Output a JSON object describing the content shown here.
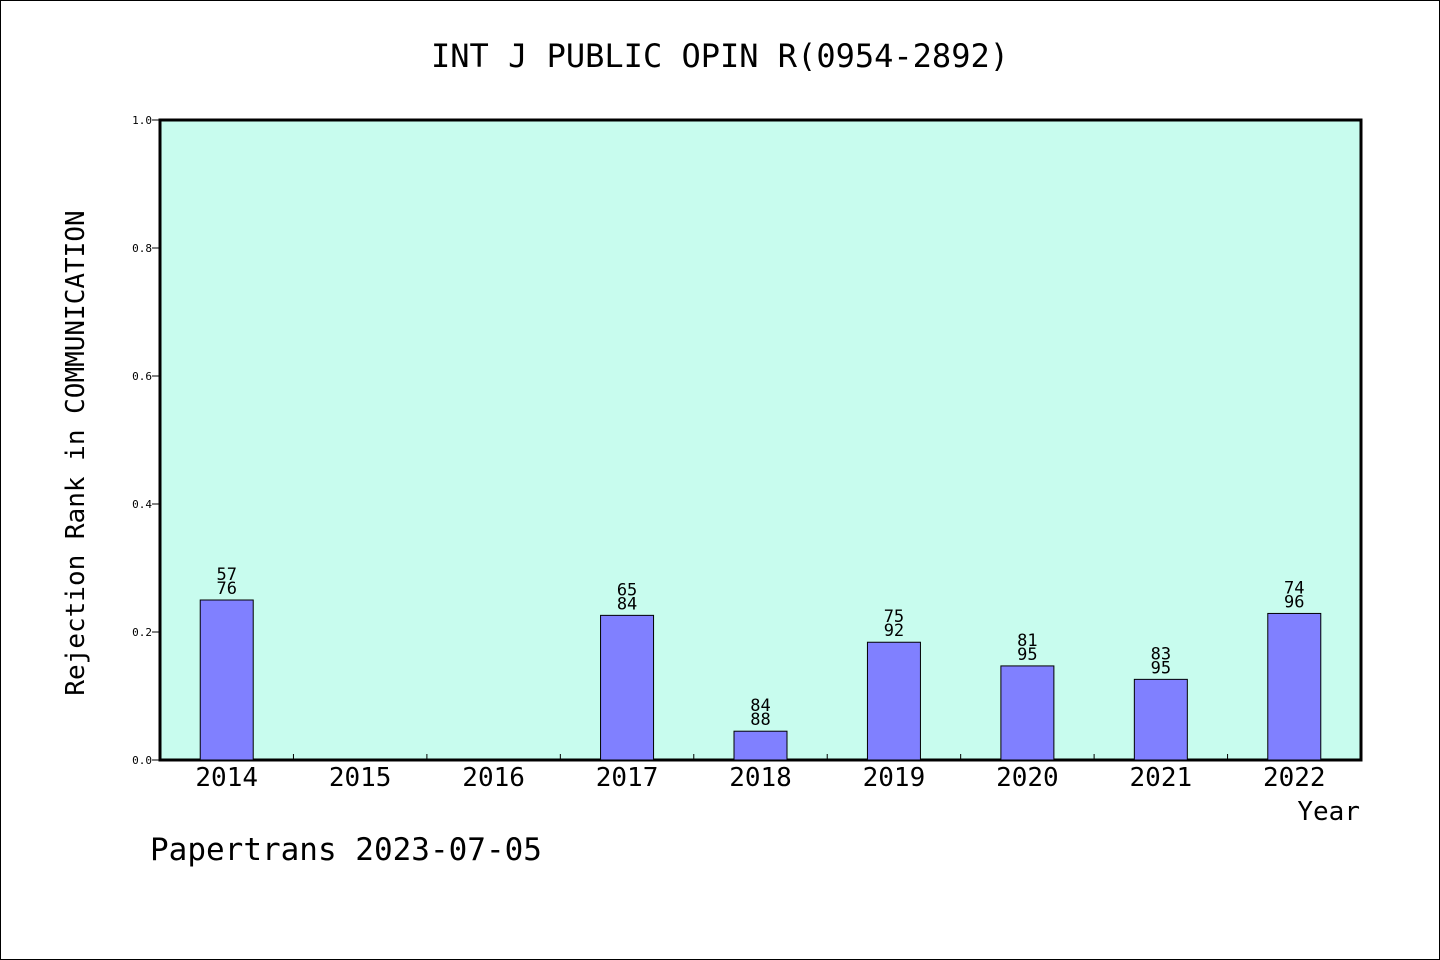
{
  "footer": "Papertrans 2023-07-05",
  "colors": {
    "plot_background": "#c8fcee",
    "bar_fill": "#8080ff",
    "axis": "#000000"
  },
  "chart_data": {
    "type": "bar",
    "title": "INT J PUBLIC OPIN R(0954-2892)",
    "xlabel": "Year",
    "ylabel": "Rejection Rank in COMMUNICATION",
    "ylim": [
      0,
      1.0
    ],
    "yticks": [
      "0.0",
      "0.2",
      "0.4",
      "0.6",
      "0.8",
      "1.0"
    ],
    "grid": false,
    "categories": [
      "2014",
      "2015",
      "2016",
      "2017",
      "2018",
      "2019",
      "2020",
      "2021",
      "2022"
    ],
    "values": [
      0.25,
      null,
      null,
      0.226,
      0.045,
      0.184,
      0.147,
      0.126,
      0.229
    ],
    "labels": [
      [
        "57",
        "76"
      ],
      null,
      null,
      [
        "65",
        "84"
      ],
      [
        "84",
        "88"
      ],
      [
        "75",
        "92"
      ],
      [
        "81",
        "95"
      ],
      [
        "83",
        "95"
      ],
      [
        "74",
        "96"
      ]
    ]
  }
}
